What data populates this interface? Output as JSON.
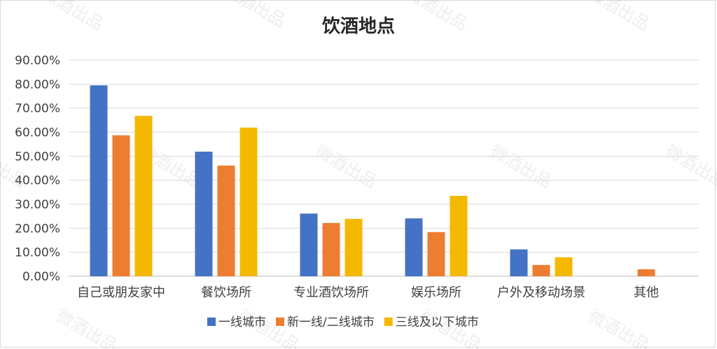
{
  "chart_data": {
    "type": "bar",
    "title": "饮酒地点",
    "categories": [
      "自己或朋友家中",
      "餐饮场所",
      "专业酒饮场所",
      "娱乐场所",
      "户外及移动场景",
      "其他"
    ],
    "series": [
      {
        "name": "一线城市",
        "color": "#4472C4",
        "values": [
          0.795,
          0.519,
          0.261,
          0.241,
          0.112,
          0
        ]
      },
      {
        "name": "新一线/二线城市",
        "color": "#ED7D31",
        "values": [
          0.587,
          0.461,
          0.222,
          0.184,
          0.047,
          0.029
        ]
      },
      {
        "name": "三线及以下城市",
        "color": "#F5B800",
        "values": [
          0.668,
          0.619,
          0.239,
          0.335,
          0.079,
          0
        ]
      }
    ],
    "ylim": [
      0,
      0.9
    ],
    "yticks": [
      "0.00%",
      "10.00%",
      "20.00%",
      "30.00%",
      "40.00%",
      "50.00%",
      "60.00%",
      "70.00%",
      "80.00%",
      "90.00%"
    ],
    "grid": true,
    "legend_position": "bottom"
  },
  "watermark": "微酒出品"
}
